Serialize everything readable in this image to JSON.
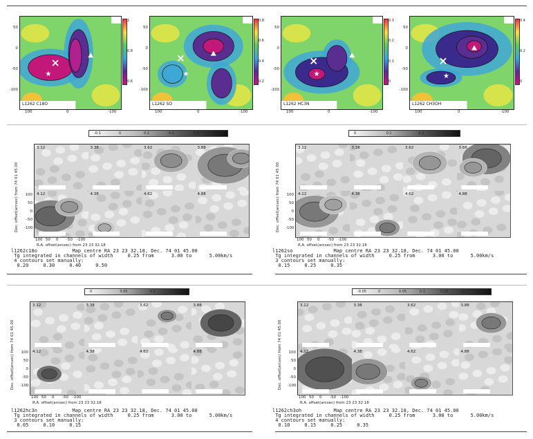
{
  "contour_maps": [
    {
      "label": "L1262 C18O",
      "cbar_ticks": [
        "1",
        "0.8",
        "0.6"
      ],
      "cbar_colors": [
        "#e63946",
        "#f7e04a",
        "#5ec962",
        "#3fa7d6",
        "#5a2d91",
        "#c2187a"
      ]
    },
    {
      "label": "L1262 SO",
      "cbar_ticks": [
        "0.8",
        "0.6",
        "0.4",
        "0.2"
      ],
      "cbar_colors": [
        "#e63946",
        "#f7e04a",
        "#5ec962",
        "#3fa7d6",
        "#5a2d91",
        "#c2187a"
      ]
    },
    {
      "label": "L1262 HC3N",
      "cbar_ticks": [
        "0.3",
        "0.2",
        "0.1",
        "0"
      ],
      "cbar_colors": [
        "#e63946",
        "#f7e04a",
        "#5ec962",
        "#3fa7d6",
        "#5a2d91",
        "#c2187a"
      ]
    },
    {
      "label": "L1262 CH3OH",
      "cbar_ticks": [
        "0.4",
        "0.2",
        "0"
      ],
      "cbar_colors": [
        "#e63946",
        "#f7e04a",
        "#5ec962",
        "#3fa7d6",
        "#5a2d91",
        "#c2187a"
      ]
    }
  ],
  "map_axes": {
    "y_ticks": [
      "50",
      "0",
      "-50",
      "-100"
    ],
    "x_ticks": [
      "100",
      "0",
      "-100"
    ]
  },
  "channel_grids": [
    {
      "grayscale_ticks": [
        "-0.1",
        "0",
        "0.1",
        "0.2",
        "0.3",
        "0.4"
      ],
      "velocities": [
        "3.12",
        "3.38",
        "3.62",
        "3.88",
        "4.12",
        "4.38",
        "4.62",
        "4.88"
      ],
      "x_ticks": [
        "100",
        "50",
        "0",
        "-50",
        "-100"
      ],
      "y_ticks": [
        "100",
        "50",
        "0",
        "-50",
        "-100"
      ],
      "ylabel": "Dec. offset(arcsec) from 74 01 45.00",
      "xlabel": "R.A. offset(arcsec) from 23 23 32.18",
      "info": [
        "l1262c18o            Map centre RA 23 23 32.18, Dec. 74 01 45.00",
        " Tg integrated in channels of width     0.25 from      3.00 to      5.00km/s",
        " 4 contours set manually:",
        "  0.20     0.30     0.40     0.50"
      ]
    },
    {
      "grayscale_ticks": [
        "0",
        "0.1",
        "0.2",
        "0.3"
      ],
      "velocities": [
        "3.12",
        "3.38",
        "3.62",
        "3.88",
        "4.12",
        "4.38",
        "4.62",
        "4.88"
      ],
      "x_ticks": [
        "100",
        "50",
        "0",
        "-50",
        "-100"
      ],
      "y_ticks": [
        "100",
        "50",
        "0",
        "-50",
        "-100"
      ],
      "ylabel": "Dec. offset(arcsec) from 74 01 45.00",
      "xlabel": "R.A. offset(arcsec) from 23 23 32.18",
      "info": [
        "l1262so              Map centre RA 23 23 32.18, Dec. 74 01 45.00",
        " Tg integrated in channels of width     0.25 from      3.00 to      5.00km/s",
        " 3 contours set manually:",
        "  0.15     0.25     0.35"
      ]
    },
    {
      "grayscale_ticks": [
        "0",
        "0.05",
        "0.1",
        "0.15"
      ],
      "velocities": [
        "3.12",
        "3.38",
        "3.62",
        "3.88",
        "4.12",
        "4.38",
        "4.62",
        "4.88"
      ],
      "x_ticks": [
        "100",
        "50",
        "0",
        "-50",
        "-100"
      ],
      "y_ticks": [
        "100",
        "50",
        "0",
        "-50",
        "-100"
      ],
      "ylabel": "Dec. offset(arcsec) from 74 01 45.00",
      "xlabel": "R.A. offset(arcsec) from 23 23 32.18",
      "info": [
        "l1262hc3n            Map centre RA 23 23 32.18, Dec. 74 01 45.00",
        " Tg integrated in channels of width     0.25 from      3.00 to      5.00km/s",
        " 3 contours set manually:",
        "  0.05     0.10     0.15"
      ]
    },
    {
      "grayscale_ticks": [
        "-0.05",
        "0",
        "0.05",
        "0.1",
        "0.15",
        "0.2",
        "0.25"
      ],
      "velocities": [
        "3.12",
        "3.38",
        "3.62",
        "3.88",
        "4.12",
        "4.38",
        "4.62",
        "4.88"
      ],
      "x_ticks": [
        "100",
        "50",
        "0",
        "-50",
        "-100"
      ],
      "y_ticks": [
        "100",
        "50",
        "0",
        "-50",
        "-100"
      ],
      "ylabel": "Dec. offset(arcsec) from 74 01 45.00",
      "xlabel": "R.A. offset(arcsec) from 23 23 32.18",
      "info": [
        "l1262ch3oh           Map centre RA 23 23 32.18, Dec. 74 01 45.00",
        " Tg integrated in channels of width     0.25 from      3.00 to      5.00km/s",
        " 4 contours set manually:",
        "  0.10     0.15     0.25     0.35"
      ]
    }
  ]
}
